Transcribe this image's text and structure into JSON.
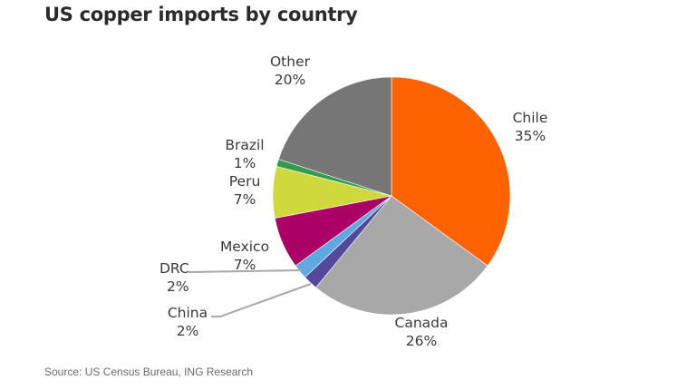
{
  "title": "US copper imports by country",
  "source": "Source: US Census Bureau, ING Research",
  "chart_data": {
    "type": "pie",
    "title": "US copper imports by country",
    "start_angle_deg": 0,
    "direction": "clockwise",
    "slices": [
      {
        "label": "Chile",
        "value": 35,
        "pct_label": "35%",
        "color": "#ff6200"
      },
      {
        "label": "Canada",
        "value": 26,
        "pct_label": "26%",
        "color": "#a8a8a8"
      },
      {
        "label": "China",
        "value": 2,
        "pct_label": "2%",
        "color": "#52489c"
      },
      {
        "label": "DRC",
        "value": 2,
        "pct_label": "2%",
        "color": "#60a9e0"
      },
      {
        "label": "Mexico",
        "value": 7,
        "pct_label": "7%",
        "color": "#ab0066"
      },
      {
        "label": "Peru",
        "value": 7,
        "pct_label": "7%",
        "color": "#d0d93c"
      },
      {
        "label": "Brazil",
        "value": 1,
        "pct_label": "1%",
        "color": "#349a4e"
      },
      {
        "label": "Other",
        "value": 20,
        "pct_label": "20%",
        "color": "#767676"
      }
    ]
  },
  "labels": {
    "chile": {
      "name": "Chile",
      "pct": "35%"
    },
    "canada": {
      "name": "Canada",
      "pct": "26%"
    },
    "china": {
      "name": "China",
      "pct": "2%"
    },
    "drc": {
      "name": "DRC",
      "pct": "2%"
    },
    "mexico": {
      "name": "Mexico",
      "pct": "7%"
    },
    "peru": {
      "name": "Peru",
      "pct": "7%"
    },
    "brazil": {
      "name": "Brazil",
      "pct": "1%"
    },
    "other": {
      "name": "Other",
      "pct": "20%"
    }
  }
}
